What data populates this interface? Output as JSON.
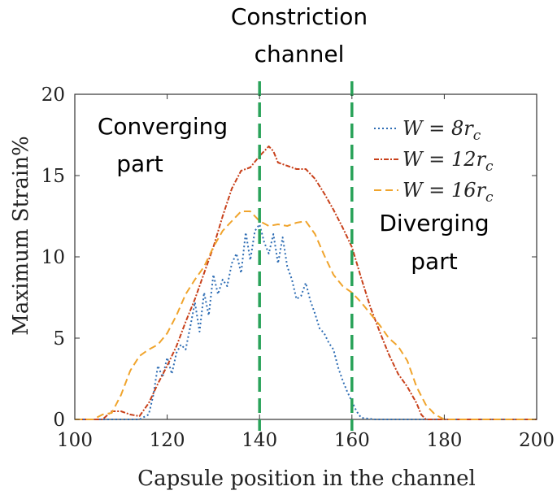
{
  "chart_data": {
    "type": "line",
    "xlabel": "Capsule position in the channel",
    "ylabel": "Maximum Strain%",
    "xlim": [
      100,
      200
    ],
    "ylim": [
      0,
      20
    ],
    "xticks": [
      "100",
      "120",
      "140",
      "160",
      "180",
      "200"
    ],
    "yticks": [
      "0",
      "5",
      "10",
      "15",
      "20"
    ],
    "annotations": {
      "constriction_1": "Constriction",
      "constriction_2": "channel",
      "converging_1": "Converging",
      "converging_2": "part",
      "diverging_1": "Diverging",
      "diverging_2": "part"
    },
    "vlines": [
      140,
      160
    ],
    "vline_color": "#2aa35a",
    "legend_position": "top-right",
    "series": [
      {
        "name": "W = 8r_c",
        "legend_main": "W = 8r",
        "legend_sub": "c",
        "color": "#2e6db4",
        "dash": "2,3",
        "x": [
          100,
          105,
          110,
          114,
          116,
          117,
          118,
          119,
          120,
          121,
          122,
          123,
          124,
          125,
          126,
          127,
          128,
          129,
          130,
          131,
          132,
          133,
          134,
          135,
          136,
          137,
          138,
          139,
          140,
          141,
          142,
          143,
          144,
          145,
          146,
          147,
          148,
          149,
          150,
          151,
          152,
          153,
          154,
          155,
          156,
          157,
          158,
          159,
          160,
          161,
          162,
          165,
          170,
          200
        ],
        "y": [
          0,
          0,
          0,
          0,
          0.3,
          1.5,
          3.3,
          2.6,
          3.8,
          2.8,
          4.1,
          4.6,
          4.3,
          5.7,
          7.2,
          5.4,
          7.8,
          6.4,
          8.9,
          7.7,
          8.6,
          8.2,
          9.6,
          10.2,
          9.0,
          11.5,
          9.8,
          11.6,
          12.0,
          10.9,
          10.2,
          11.4,
          9.6,
          11.2,
          9.4,
          8.6,
          7.4,
          7.6,
          8.4,
          7.3,
          6.5,
          5.6,
          5.3,
          4.7,
          4.3,
          3.2,
          2.4,
          1.7,
          1.1,
          0.5,
          0.1,
          0,
          0,
          0
        ]
      },
      {
        "name": "W = 12r_c",
        "legend_main": "W = 12r",
        "legend_sub": "c",
        "color": "#c8401a",
        "dash": "6,2,2,2",
        "x": [
          100,
          106,
          108,
          110,
          112,
          114,
          116,
          118,
          120,
          122,
          124,
          126,
          128,
          130,
          132,
          134,
          136,
          138,
          140,
          141,
          142,
          143,
          144,
          146,
          148,
          150,
          152,
          154,
          156,
          158,
          160,
          162,
          164,
          166,
          168,
          170,
          172,
          174,
          175,
          176,
          178,
          200
        ],
        "y": [
          0,
          0,
          0.5,
          0.5,
          0.3,
          0.2,
          1.0,
          2.2,
          3.3,
          4.5,
          6.0,
          7.4,
          9.0,
          10.6,
          12.5,
          14.2,
          15.3,
          15.5,
          16.2,
          16.5,
          16.8,
          16.5,
          15.8,
          15.6,
          15.4,
          15.4,
          14.8,
          13.9,
          12.9,
          11.8,
          10.6,
          8.7,
          6.9,
          5.4,
          4.0,
          2.8,
          2.0,
          1.0,
          0.3,
          0,
          0,
          0
        ]
      },
      {
        "name": "W = 16r_c",
        "legend_main": "W = 16r",
        "legend_sub": "c",
        "color": "#f0a42c",
        "dash": "9,5",
        "x": [
          100,
          104,
          106,
          108,
          110,
          112,
          114,
          116,
          118,
          120,
          122,
          124,
          126,
          128,
          130,
          132,
          134,
          136,
          138,
          140,
          142,
          144,
          146,
          148,
          150,
          152,
          154,
          156,
          158,
          160,
          162,
          164,
          166,
          168,
          170,
          172,
          174,
          176,
          178,
          180,
          200
        ],
        "y": [
          0,
          0,
          0.3,
          0.4,
          1.5,
          3.0,
          3.9,
          4.3,
          4.6,
          5.3,
          6.4,
          7.7,
          8.6,
          9.4,
          10.6,
          11.6,
          12.2,
          12.8,
          12.8,
          12.2,
          11.9,
          12.0,
          11.9,
          12.1,
          12.2,
          11.4,
          10.1,
          8.9,
          8.2,
          7.8,
          7.2,
          6.5,
          5.8,
          5.0,
          4.5,
          3.6,
          2.0,
          0.9,
          0.3,
          0,
          0
        ]
      }
    ]
  }
}
